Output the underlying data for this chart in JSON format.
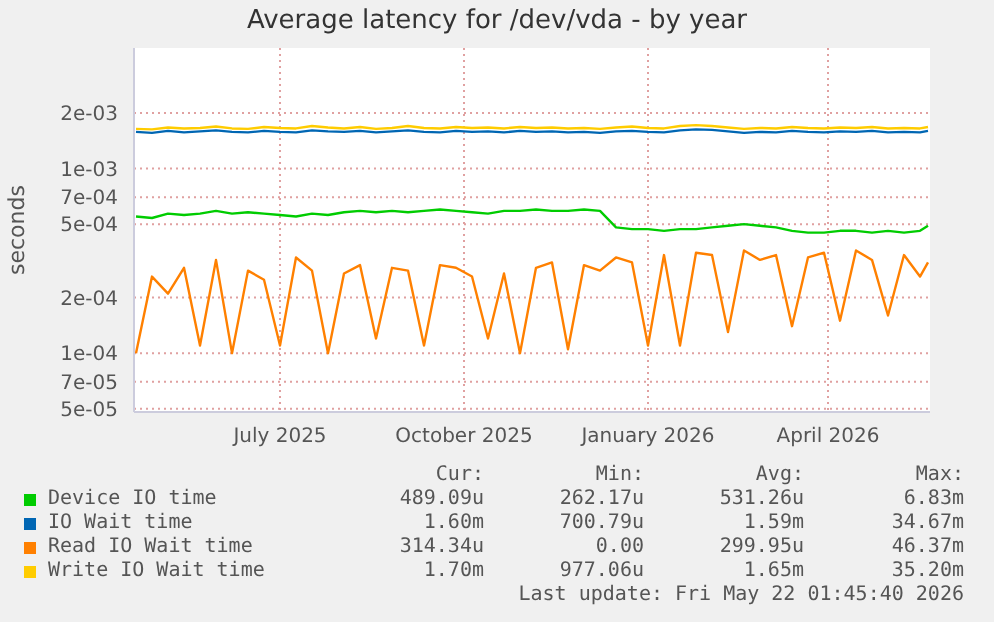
{
  "chart_data": {
    "type": "line",
    "title": "Average latency for /dev/vda - by year",
    "ylabel": "seconds",
    "log": true,
    "grid": true,
    "legend": "bottom",
    "marker": "none",
    "line_style": "solid",
    "x": [
      "2025-04-20",
      "2025-04-28",
      "2025-05-06",
      "2025-05-14",
      "2025-05-22",
      "2025-05-30",
      "2025-06-07",
      "2025-06-15",
      "2025-06-23",
      "2025-07-01",
      "2025-07-09",
      "2025-07-17",
      "2025-07-25",
      "2025-08-02",
      "2025-08-10",
      "2025-08-18",
      "2025-08-26",
      "2025-09-03",
      "2025-09-11",
      "2025-09-19",
      "2025-09-27",
      "2025-10-05",
      "2025-10-13",
      "2025-10-21",
      "2025-10-29",
      "2025-11-06",
      "2025-11-14",
      "2025-11-22",
      "2025-11-30",
      "2025-12-08",
      "2025-12-16",
      "2025-12-24",
      "2026-01-01",
      "2026-01-09",
      "2026-01-17",
      "2026-01-25",
      "2026-02-02",
      "2026-02-10",
      "2026-02-18",
      "2026-02-26",
      "2026-03-06",
      "2026-03-14",
      "2026-03-22",
      "2026-03-30",
      "2026-04-07",
      "2026-04-15",
      "2026-04-23",
      "2026-05-01",
      "2026-05-09",
      "2026-05-17",
      "2026-05-21"
    ],
    "xlim": [
      "2025-04-19",
      "2026-05-22"
    ],
    "xticks": [
      {
        "value": "2025-07-01",
        "label": "July 2025"
      },
      {
        "value": "2025-10-01",
        "label": "October 2025"
      },
      {
        "value": "2026-01-01",
        "label": "January 2026"
      },
      {
        "value": "2026-04-01",
        "label": "April 2026"
      }
    ],
    "ylim": [
      4.8e-05,
      0.0045
    ],
    "yticks": [
      {
        "value": 5e-05,
        "label": "5e-05"
      },
      {
        "value": 7e-05,
        "label": "7e-05"
      },
      {
        "value": 0.0001,
        "label": "1e-04"
      },
      {
        "value": 0.0002,
        "label": "2e-04"
      },
      {
        "value": 0.0005,
        "label": "5e-04"
      },
      {
        "value": 0.0007,
        "label": "7e-04"
      },
      {
        "value": 0.001,
        "label": "1e-03"
      },
      {
        "value": 0.002,
        "label": "2e-03"
      }
    ],
    "series": [
      {
        "name": "Device IO time",
        "color": "#00cc00",
        "values": [
          0.00055,
          0.00054,
          0.00057,
          0.00056,
          0.00057,
          0.00059,
          0.00057,
          0.00058,
          0.00057,
          0.00056,
          0.00055,
          0.00057,
          0.00056,
          0.00058,
          0.00059,
          0.00058,
          0.00059,
          0.00058,
          0.00059,
          0.0006,
          0.00059,
          0.00058,
          0.00057,
          0.00059,
          0.00059,
          0.0006,
          0.00059,
          0.00059,
          0.0006,
          0.00059,
          0.00048,
          0.00047,
          0.00047,
          0.00046,
          0.00047,
          0.00047,
          0.00048,
          0.00049,
          0.0005,
          0.00049,
          0.00048,
          0.00046,
          0.00045,
          0.00045,
          0.00046,
          0.00046,
          0.00045,
          0.00046,
          0.00045,
          0.00046,
          0.00049
        ]
      },
      {
        "name": "IO Wait time",
        "color": "#0066b3",
        "values": [
          0.00158,
          0.00156,
          0.0016,
          0.00157,
          0.00159,
          0.00161,
          0.00158,
          0.00157,
          0.0016,
          0.00158,
          0.00157,
          0.00161,
          0.00159,
          0.00158,
          0.0016,
          0.00157,
          0.00159,
          0.00161,
          0.00158,
          0.00157,
          0.0016,
          0.00158,
          0.00159,
          0.00157,
          0.0016,
          0.00158,
          0.00159,
          0.00157,
          0.00158,
          0.00156,
          0.00159,
          0.0016,
          0.00158,
          0.00157,
          0.00161,
          0.00163,
          0.00162,
          0.00159,
          0.00156,
          0.00158,
          0.00157,
          0.0016,
          0.00158,
          0.00157,
          0.00159,
          0.00158,
          0.0016,
          0.00157,
          0.00158,
          0.00157,
          0.0016
        ]
      },
      {
        "name": "Read IO Wait time",
        "color": "#ff8000",
        "values": [
          0.0001,
          0.00026,
          0.00021,
          0.00029,
          0.00011,
          0.00032,
          0.0001,
          0.00028,
          0.00025,
          0.00011,
          0.00033,
          0.00028,
          0.0001,
          0.00027,
          0.0003,
          0.00012,
          0.00029,
          0.00028,
          0.00011,
          0.0003,
          0.00029,
          0.00026,
          0.00012,
          0.00027,
          0.0001,
          0.00029,
          0.00031,
          0.000105,
          0.0003,
          0.00028,
          0.00033,
          0.00031,
          0.00011,
          0.00034,
          0.00011,
          0.00035,
          0.00034,
          0.00013,
          0.00036,
          0.00032,
          0.00034,
          0.00014,
          0.00033,
          0.00035,
          0.00015,
          0.00036,
          0.00032,
          0.00016,
          0.00034,
          0.00026,
          0.00031
        ]
      },
      {
        "name": "Write IO Wait time",
        "color": "#ffcc00",
        "values": [
          0.00164,
          0.00163,
          0.00167,
          0.00165,
          0.00166,
          0.00169,
          0.00165,
          0.00164,
          0.00168,
          0.00166,
          0.00165,
          0.0017,
          0.00167,
          0.00165,
          0.00168,
          0.00164,
          0.00166,
          0.0017,
          0.00166,
          0.00165,
          0.00168,
          0.00166,
          0.00167,
          0.00165,
          0.00168,
          0.00166,
          0.00167,
          0.00165,
          0.00166,
          0.00164,
          0.00167,
          0.00169,
          0.00166,
          0.00165,
          0.0017,
          0.00172,
          0.0017,
          0.00167,
          0.00164,
          0.00166,
          0.00165,
          0.00168,
          0.00166,
          0.00165,
          0.00167,
          0.00166,
          0.00168,
          0.00165,
          0.00166,
          0.00165,
          0.00168
        ]
      }
    ],
    "annotations": [
      "Cur:",
      "Min:",
      "Avg:",
      "Max:",
      "489.09u",
      "262.17u",
      "531.26u",
      "6.83m",
      "1.60m",
      "700.79u",
      "1.59m",
      "34.67m",
      "314.34u",
      "0.00",
      "299.95u",
      "46.37m",
      "1.70m",
      "977.06u",
      "1.65m",
      "35.20m",
      "Last update: Fri May 22 01:45:40 2026"
    ]
  }
}
